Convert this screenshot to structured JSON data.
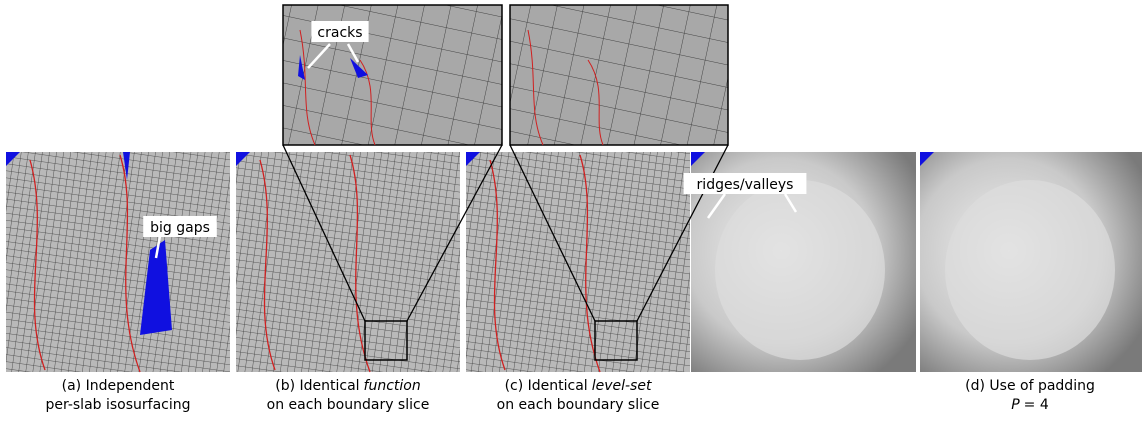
{
  "panels": [
    {
      "caption": [
        [
          {
            "text": "(a) Independent"
          }
        ],
        [
          {
            "text": "per-slab isosurfacing"
          }
        ]
      ]
    },
    {
      "caption": [
        [
          {
            "text": "(b) Identical"
          },
          {
            "text": "function",
            "italic": true
          }
        ],
        [
          {
            "text": "on each boundary slice"
          }
        ]
      ]
    },
    {
      "caption": [
        [
          {
            "text": "(c) Identical"
          },
          {
            "text": "level-set",
            "italic": true
          }
        ],
        [
          {
            "text": "on each boundary slice"
          }
        ]
      ]
    },
    {
      "caption": [
        [
          {
            "text": "(d) Use of padding"
          }
        ],
        [
          {
            "text": "P",
            "italic": true
          },
          {
            "text": "= 4"
          }
        ]
      ]
    }
  ],
  "annotations": [
    {
      "text": "cracks"
    },
    {
      "text": "big gaps"
    },
    {
      "text": "ridges/valleys"
    }
  ]
}
